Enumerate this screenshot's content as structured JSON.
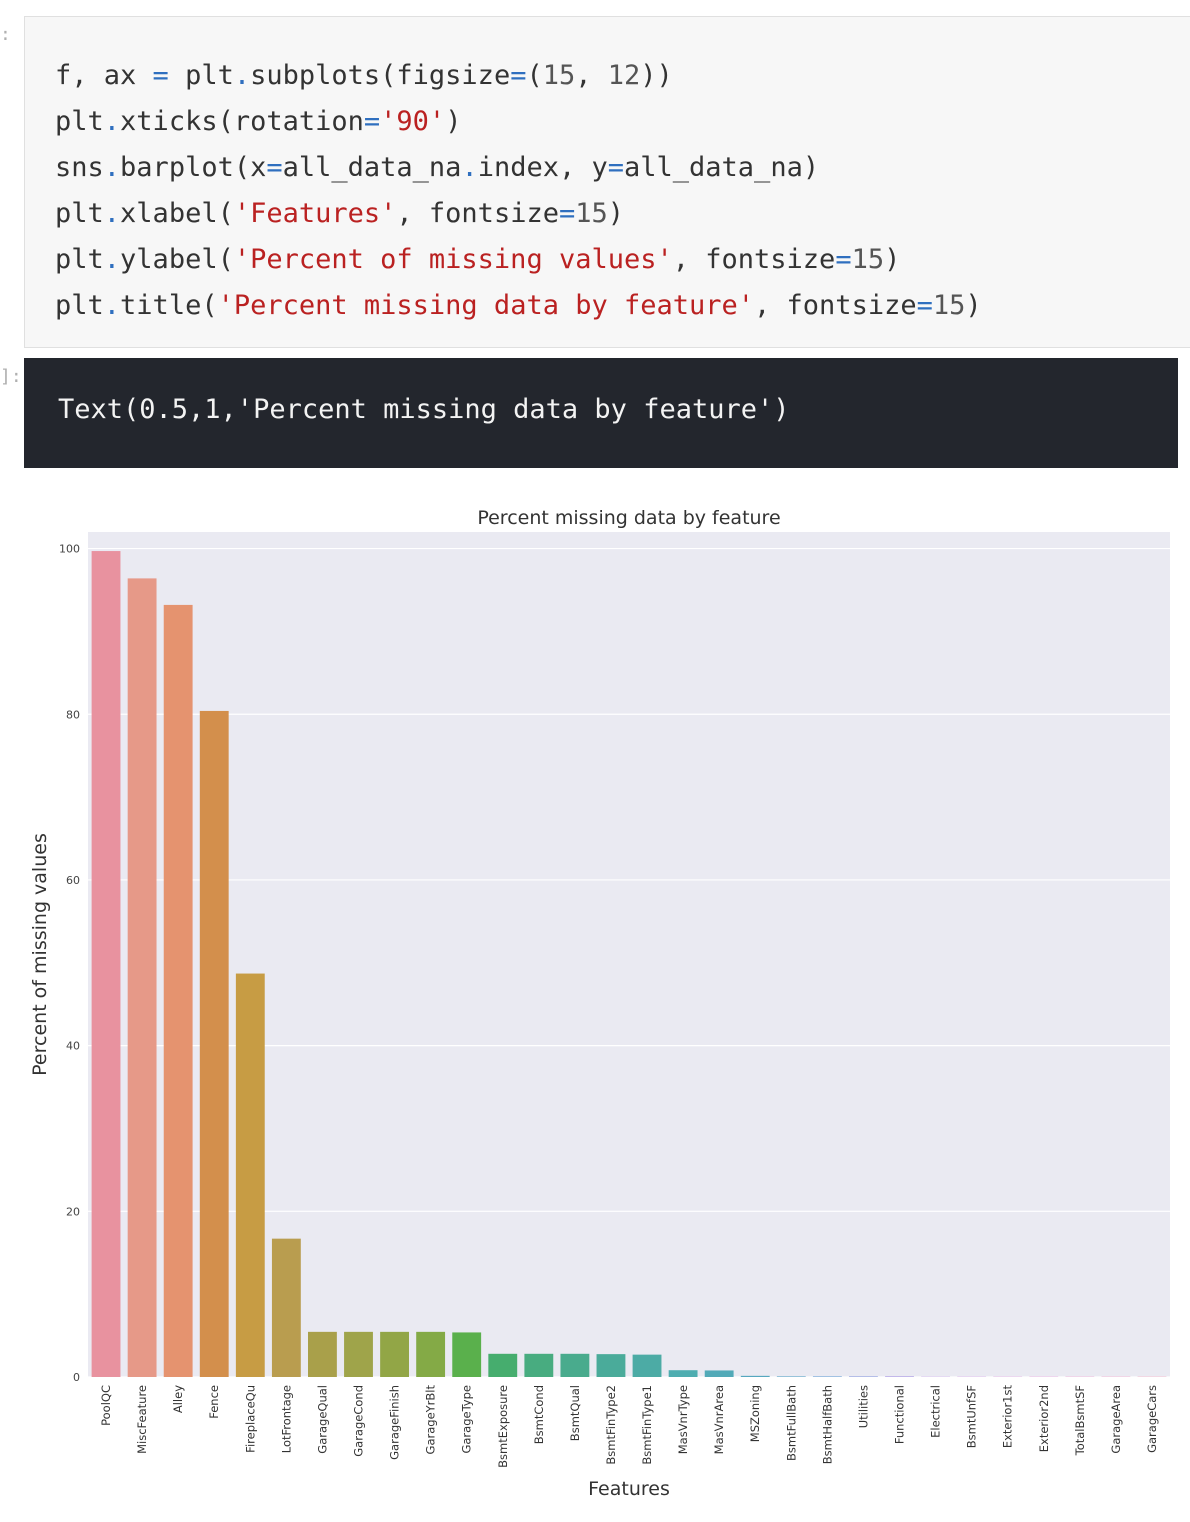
{
  "cell": {
    "in_prompt": ":",
    "out_prompt": "]:",
    "code_lines": [
      [
        {
          "t": "f, ax ",
          "c": ""
        },
        {
          "t": "=",
          "c": "op"
        },
        {
          "t": " plt",
          "c": ""
        },
        {
          "t": ".",
          "c": "op"
        },
        {
          "t": "subplots(figsize",
          "c": ""
        },
        {
          "t": "=",
          "c": "op"
        },
        {
          "t": "(",
          "c": ""
        },
        {
          "t": "15",
          "c": "num"
        },
        {
          "t": ", ",
          "c": ""
        },
        {
          "t": "12",
          "c": "num"
        },
        {
          "t": "))",
          "c": ""
        }
      ],
      [
        {
          "t": "plt",
          "c": ""
        },
        {
          "t": ".",
          "c": "op"
        },
        {
          "t": "xticks(rotation",
          "c": ""
        },
        {
          "t": "=",
          "c": "op"
        },
        {
          "t": "'90'",
          "c": "str"
        },
        {
          "t": ")",
          "c": ""
        }
      ],
      [
        {
          "t": "sns",
          "c": ""
        },
        {
          "t": ".",
          "c": "op"
        },
        {
          "t": "barplot(x",
          "c": ""
        },
        {
          "t": "=",
          "c": "op"
        },
        {
          "t": "all_data_na",
          "c": ""
        },
        {
          "t": ".",
          "c": "op"
        },
        {
          "t": "index, y",
          "c": ""
        },
        {
          "t": "=",
          "c": "op"
        },
        {
          "t": "all_data_na)",
          "c": ""
        }
      ],
      [
        {
          "t": "plt",
          "c": ""
        },
        {
          "t": ".",
          "c": "op"
        },
        {
          "t": "xlabel(",
          "c": ""
        },
        {
          "t": "'Features'",
          "c": "str"
        },
        {
          "t": ", fontsize",
          "c": ""
        },
        {
          "t": "=",
          "c": "op"
        },
        {
          "t": "15",
          "c": "num"
        },
        {
          "t": ")",
          "c": ""
        }
      ],
      [
        {
          "t": "plt",
          "c": ""
        },
        {
          "t": ".",
          "c": "op"
        },
        {
          "t": "ylabel(",
          "c": ""
        },
        {
          "t": "'Percent of missing values'",
          "c": "str"
        },
        {
          "t": ", fontsize",
          "c": ""
        },
        {
          "t": "=",
          "c": "op"
        },
        {
          "t": "15",
          "c": "num"
        },
        {
          "t": ")",
          "c": ""
        }
      ],
      [
        {
          "t": "plt",
          "c": ""
        },
        {
          "t": ".",
          "c": "op"
        },
        {
          "t": "title(",
          "c": ""
        },
        {
          "t": "'Percent missing data by feature'",
          "c": "str"
        },
        {
          "t": ", fontsize",
          "c": ""
        },
        {
          "t": "=",
          "c": "op"
        },
        {
          "t": "15",
          "c": "num"
        },
        {
          "t": ")",
          "c": ""
        }
      ]
    ],
    "output_text": "Text(0.5,1,'Percent missing data by feature')"
  },
  "chart_data": {
    "type": "bar",
    "title": "Percent missing data by feature",
    "xlabel": "Features",
    "ylabel": "Percent of missing values",
    "ylim": [
      0,
      102
    ],
    "yticks": [
      0,
      20,
      40,
      60,
      80,
      100
    ],
    "grid": true,
    "categories": [
      "PoolQC",
      "MiscFeature",
      "Alley",
      "Fence",
      "FireplaceQu",
      "LotFrontage",
      "GarageQual",
      "GarageCond",
      "GarageFinish",
      "GarageYrBlt",
      "GarageType",
      "BsmtExposure",
      "BsmtCond",
      "BsmtQual",
      "BsmtFinType2",
      "BsmtFinType1",
      "MasVnrType",
      "MasVnrArea",
      "MSZoning",
      "BsmtFullBath",
      "BsmtHalfBath",
      "Utilities",
      "Functional",
      "Electrical",
      "BsmtUnfSF",
      "Exterior1st",
      "Exterior2nd",
      "TotalBsmtSF",
      "GarageArea",
      "GarageCars"
    ],
    "values": [
      99.7,
      96.4,
      93.2,
      80.4,
      48.7,
      16.7,
      5.45,
      5.45,
      5.45,
      5.45,
      5.38,
      2.8,
      2.8,
      2.8,
      2.76,
      2.7,
      0.82,
      0.79,
      0.14,
      0.07,
      0.07,
      0.07,
      0.07,
      0.03,
      0.03,
      0.03,
      0.03,
      0.03,
      0.03,
      0.03
    ],
    "colors": [
      "#e8929f",
      "#e69988",
      "#e5936f",
      "#d38f4c",
      "#c79c44",
      "#b99d4f",
      "#a9a04a",
      "#9fa44a",
      "#92a646",
      "#84aa46",
      "#5ab04c",
      "#46ad6e",
      "#48ac80",
      "#49ab8d",
      "#4aab9a",
      "#4caba5",
      "#4eadb0",
      "#52aab8",
      "#56a7bf",
      "#5aa4c8",
      "#6aa1d6",
      "#8c9be0",
      "#a492e3",
      "#b68ae2",
      "#c485dd",
      "#d17fd5",
      "#dd7acc",
      "#e579c0",
      "#e77cb2",
      "#e883a5"
    ],
    "background": "#eaeaf2"
  }
}
